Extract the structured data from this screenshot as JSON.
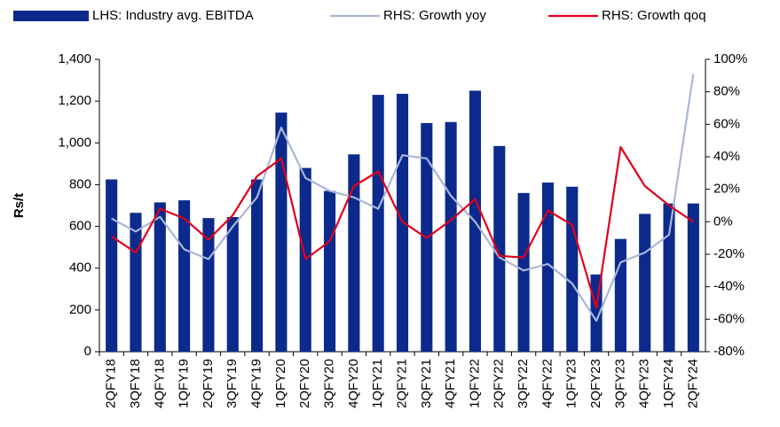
{
  "chart_data": {
    "type": "bar",
    "y_label": "Rs/t",
    "categories": [
      "2QFY18",
      "3QFY18",
      "4QFY18",
      "1QFY19",
      "2QFY19",
      "3QFY19",
      "4QFY19",
      "1QFY20",
      "2QFY20",
      "3QFY20",
      "4QFY20",
      "1QFY21",
      "2QFY21",
      "3QFY21",
      "4QFY21",
      "1QFY22",
      "2QFY22",
      "3QFY22",
      "4QFY22",
      "1QFY23",
      "2QFY23",
      "3QFY23",
      "4QFY23",
      "1QFY24",
      "2QFY24"
    ],
    "series": [
      {
        "name": "LHS: Industry avg. EBITDA",
        "type": "bar",
        "axis": "y",
        "color": "#0b2a8c",
        "values": [
          825,
          665,
          715,
          725,
          640,
          645,
          825,
          1145,
          880,
          770,
          945,
          1230,
          1235,
          1095,
          1100,
          1250,
          985,
          760,
          810,
          790,
          370,
          540,
          660,
          710,
          710
        ]
      },
      {
        "name": "RHS: Growth yoy",
        "type": "line",
        "axis": "y2",
        "color": "#a9b6d8",
        "values": [
          2,
          -6,
          3,
          -17,
          -23,
          -3,
          15,
          58,
          27,
          19,
          15,
          8,
          41,
          39,
          16,
          0,
          -22,
          -30,
          -26,
          -38,
          -61,
          -25,
          -19,
          -8,
          91
        ]
      },
      {
        "name": "RHS: Growth qoq",
        "type": "line",
        "axis": "y2",
        "color": "#e0001b",
        "values": [
          -9,
          -19,
          8,
          2,
          -11,
          4,
          28,
          39,
          -23,
          -12,
          22,
          31,
          0,
          -10,
          1,
          14,
          -21,
          -22,
          7,
          -2,
          -53,
          46,
          22,
          10,
          0
        ]
      }
    ],
    "ylim": [
      0,
      1400
    ],
    "yticks": [
      0,
      200,
      400,
      600,
      800,
      {
        "value": 1000,
        "label": "1,000"
      },
      {
        "value": 1200,
        "label": "1,200"
      },
      {
        "value": 1400,
        "label": "1,400"
      }
    ],
    "y2lim": [
      -80,
      100
    ],
    "y2ticks": [
      {
        "value": -80,
        "label": "-80%"
      },
      {
        "value": -60,
        "label": "-60%"
      },
      {
        "value": -40,
        "label": "-40%"
      },
      {
        "value": -20,
        "label": "-20%"
      },
      {
        "value": 0,
        "label": "0%"
      },
      {
        "value": 20,
        "label": "20%"
      },
      {
        "value": 40,
        "label": "40%"
      },
      {
        "value": 60,
        "label": "60%"
      },
      {
        "value": 80,
        "label": "80%"
      },
      {
        "value": 100,
        "label": "100%"
      }
    ],
    "legend": "top",
    "grid": false
  }
}
